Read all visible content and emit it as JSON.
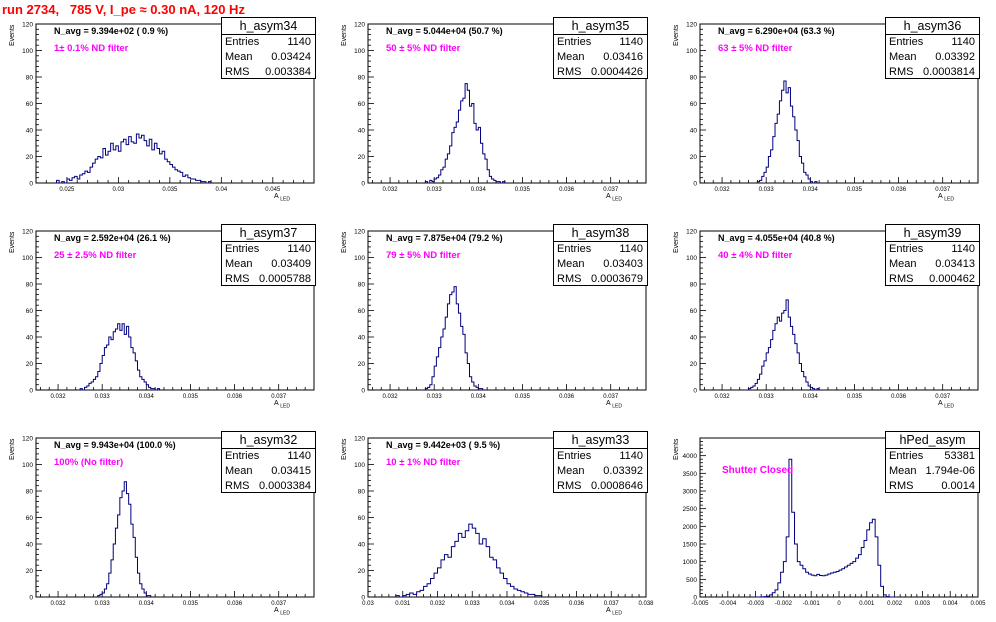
{
  "run_title": "run 2734,   785 V, I_pe ≈ 0.30 nA, 120 Hz",
  "colors": {
    "histogram": "#000080",
    "label_magenta": "#ff00ff",
    "title_red": "#ff0000"
  },
  "chart_data": [
    {
      "type": "histogram",
      "name": "h_asym34",
      "navg_text": "N_avg = 9.394e+02 ( 0.9 %)",
      "filter_text": "1± 0.1% ND filter",
      "stats": {
        "Entries": "1140",
        "Mean": "0.03424",
        "RMS": "0.003384"
      },
      "ylabel": "Events",
      "xlabel": "A",
      "xlabel_sub": "LED",
      "xlim": [
        0.022,
        0.049
      ],
      "ylim": [
        0,
        120
      ],
      "yticks": [
        0,
        20,
        40,
        60,
        80,
        100,
        120
      ],
      "xticks": [
        0.025,
        0.03,
        0.035,
        0.04,
        0.045
      ],
      "xtick_labels": [
        "0.025",
        "0.03",
        "0.035",
        "0.04",
        "0.045"
      ],
      "bin_start": 0.024,
      "bin_width": 0.00025,
      "counts": [
        2,
        0,
        1,
        0,
        3,
        2,
        4,
        5,
        3,
        6,
        7,
        9,
        8,
        12,
        15,
        18,
        20,
        19,
        26,
        21,
        24,
        30,
        25,
        28,
        24,
        31,
        33,
        29,
        35,
        31,
        30,
        37,
        34,
        36,
        32,
        28,
        33,
        25,
        30,
        26,
        22,
        24,
        18,
        16,
        14,
        12,
        10,
        9,
        8,
        5,
        6,
        4,
        3,
        3,
        2,
        2,
        1,
        1,
        0,
        1
      ]
    },
    {
      "type": "histogram",
      "name": "h_asym35",
      "navg_text": "N_avg = 5.044e+04 (50.7 %)",
      "filter_text": "50 ± 5% ND filter",
      "stats": {
        "Entries": "1140",
        "Mean": "0.03416",
        "RMS": "0.0004426"
      },
      "ylabel": "Events",
      "xlabel": "A",
      "xlabel_sub": "LED",
      "xlim": [
        0.0315,
        0.0378
      ],
      "ylim": [
        0,
        120
      ],
      "yticks": [
        0,
        20,
        40,
        60,
        80,
        100,
        120
      ],
      "xticks": [
        0.032,
        0.033,
        0.034,
        0.035,
        0.036,
        0.037
      ],
      "xtick_labels": [
        "0.032",
        "0.033",
        "0.034",
        "0.035",
        "0.036",
        "0.037"
      ],
      "bin_start": 0.0328,
      "bin_width": 5e-05,
      "counts": [
        1,
        0,
        2,
        1,
        3,
        4,
        6,
        10,
        12,
        18,
        22,
        28,
        38,
        42,
        46,
        55,
        62,
        64,
        75,
        70,
        58,
        60,
        45,
        40,
        42,
        30,
        22,
        18,
        10,
        5,
        3,
        2,
        1,
        1,
        0,
        1
      ]
    },
    {
      "type": "histogram",
      "name": "h_asym36",
      "navg_text": "N_avg = 6.290e+04 (63.3 %)",
      "filter_text": "63 ± 5% ND filter",
      "stats": {
        "Entries": "1140",
        "Mean": "0.03392",
        "RMS": "0.0003814"
      },
      "ylabel": "Events",
      "xlabel": "A",
      "xlabel_sub": "LED",
      "xlim": [
        0.0315,
        0.0378
      ],
      "ylim": [
        0,
        120
      ],
      "yticks": [
        0,
        20,
        40,
        60,
        80,
        100,
        120
      ],
      "xticks": [
        0.032,
        0.033,
        0.034,
        0.035,
        0.036,
        0.037
      ],
      "xtick_labels": [
        "0.032",
        "0.033",
        "0.034",
        "0.035",
        "0.036",
        "0.037"
      ],
      "bin_start": 0.0328,
      "bin_width": 5e-05,
      "counts": [
        1,
        2,
        5,
        8,
        12,
        20,
        25,
        35,
        45,
        52,
        62,
        70,
        77,
        68,
        72,
        58,
        50,
        40,
        32,
        20,
        15,
        8,
        6,
        3,
        1,
        0,
        1
      ]
    },
    {
      "type": "histogram",
      "name": "h_asym37",
      "navg_text": "N_avg = 2.592e+04 (26.1 %)",
      "filter_text": "25 ± 2.5% ND filter",
      "stats": {
        "Entries": "1140",
        "Mean": "0.03409",
        "RMS": "0.0005788"
      },
      "ylabel": "Events",
      "xlabel": "A",
      "xlabel_sub": "LED",
      "xlim": [
        0.0315,
        0.0378
      ],
      "ylim": [
        0,
        120
      ],
      "yticks": [
        0,
        20,
        40,
        60,
        80,
        100,
        120
      ],
      "xticks": [
        0.032,
        0.033,
        0.034,
        0.035,
        0.036,
        0.037
      ],
      "xtick_labels": [
        "0.032",
        "0.033",
        "0.034",
        "0.035",
        "0.036",
        "0.037"
      ],
      "bin_start": 0.0325,
      "bin_width": 5e-05,
      "counts": [
        1,
        0,
        2,
        3,
        5,
        6,
        8,
        10,
        14,
        20,
        26,
        32,
        34,
        40,
        38,
        44,
        46,
        50,
        45,
        50,
        42,
        48,
        40,
        32,
        28,
        22,
        15,
        10,
        8,
        6,
        4,
        2,
        1,
        1,
        0,
        1
      ]
    },
    {
      "type": "histogram",
      "name": "h_asym38",
      "navg_text": "N_avg = 7.875e+04 (79.2 %)",
      "filter_text": "79 ± 5% ND filter",
      "stats": {
        "Entries": "1140",
        "Mean": "0.03403",
        "RMS": "0.0003679"
      },
      "ylabel": "Events",
      "xlabel": "A",
      "xlabel_sub": "LED",
      "xlim": [
        0.0315,
        0.0378
      ],
      "ylim": [
        0,
        120
      ],
      "yticks": [
        0,
        20,
        40,
        60,
        80,
        100,
        120
      ],
      "xticks": [
        0.032,
        0.033,
        0.034,
        0.035,
        0.036,
        0.037
      ],
      "xtick_labels": [
        "0.032",
        "0.033",
        "0.034",
        "0.035",
        "0.036",
        "0.037"
      ],
      "bin_start": 0.0328,
      "bin_width": 5e-05,
      "counts": [
        1,
        2,
        4,
        10,
        18,
        25,
        32,
        40,
        46,
        55,
        65,
        72,
        74,
        78,
        65,
        58,
        48,
        42,
        28,
        20,
        10,
        6,
        3,
        2,
        1,
        1
      ]
    },
    {
      "type": "histogram",
      "name": "h_asym39",
      "navg_text": "N_avg = 4.055e+04 (40.8 %)",
      "filter_text": "40 ± 4% ND filter",
      "stats": {
        "Entries": "1140",
        "Mean": "0.03413",
        "RMS": "0.000462"
      },
      "ylabel": "Events",
      "xlabel": "A",
      "xlabel_sub": "LED",
      "xlim": [
        0.0315,
        0.0378
      ],
      "ylim": [
        0,
        120
      ],
      "yticks": [
        0,
        20,
        40,
        60,
        80,
        100,
        120
      ],
      "xticks": [
        0.032,
        0.033,
        0.034,
        0.035,
        0.036,
        0.037
      ],
      "xtick_labels": [
        "0.032",
        "0.033",
        "0.034",
        "0.035",
        "0.036",
        "0.037"
      ],
      "bin_start": 0.0326,
      "bin_width": 5e-05,
      "counts": [
        1,
        2,
        3,
        5,
        8,
        12,
        18,
        22,
        28,
        32,
        38,
        45,
        50,
        55,
        52,
        58,
        60,
        68,
        55,
        48,
        42,
        35,
        28,
        20,
        14,
        10,
        6,
        3,
        2,
        1,
        0,
        1
      ]
    },
    {
      "type": "histogram",
      "name": "h_asym32",
      "navg_text": "N_avg = 9.943e+04 (100.0 %)",
      "filter_text": "100% (No filter)",
      "stats": {
        "Entries": "1140",
        "Mean": "0.03415",
        "RMS": "0.0003384"
      },
      "ylabel": "Events",
      "xlabel": "A",
      "xlabel_sub": "LED",
      "xlim": [
        0.0315,
        0.0378
      ],
      "ylim": [
        0,
        120
      ],
      "yticks": [
        0,
        20,
        40,
        60,
        80,
        100,
        120
      ],
      "xticks": [
        0.032,
        0.033,
        0.034,
        0.035,
        0.036,
        0.037
      ],
      "xtick_labels": [
        "0.032",
        "0.033",
        "0.034",
        "0.035",
        "0.036",
        "0.037"
      ],
      "bin_start": 0.0329,
      "bin_width": 5e-05,
      "counts": [
        1,
        2,
        3,
        6,
        10,
        18,
        28,
        40,
        52,
        62,
        75,
        80,
        87,
        78,
        70,
        55,
        45,
        30,
        18,
        10,
        6,
        3,
        1,
        1
      ]
    },
    {
      "type": "histogram",
      "name": "h_asym33",
      "navg_text": "N_avg = 9.442e+03 ( 9.5 %)",
      "filter_text": "10 ± 1% ND filter",
      "stats": {
        "Entries": "1140",
        "Mean": "0.03392",
        "RMS": "0.0008646"
      },
      "ylabel": "Events",
      "xlabel": "A",
      "xlabel_sub": "LED",
      "xlim": [
        0.03,
        0.038
      ],
      "ylim": [
        0,
        120
      ],
      "yticks": [
        0,
        20,
        40,
        60,
        80,
        100,
        120
      ],
      "xticks": [
        0.03,
        0.031,
        0.032,
        0.033,
        0.034,
        0.035,
        0.036,
        0.037,
        0.038
      ],
      "xtick_labels": [
        "0.03",
        "0.031",
        "0.032",
        "0.033",
        "0.034",
        "0.035",
        "0.036",
        "0.037",
        "0.038"
      ],
      "bin_start": 0.0308,
      "bin_width": 0.0001,
      "counts": [
        1,
        0,
        1,
        2,
        3,
        2,
        4,
        5,
        8,
        10,
        14,
        18,
        22,
        28,
        32,
        30,
        38,
        42,
        48,
        45,
        50,
        55,
        52,
        48,
        40,
        44,
        38,
        30,
        28,
        22,
        18,
        14,
        10,
        8,
        6,
        5,
        4,
        3,
        2,
        2,
        1,
        1
      ]
    },
    {
      "type": "histogram",
      "name": "hPed_asym",
      "navg_text": "",
      "filter_text": "Shutter Closed",
      "stats": {
        "Entries": "53381",
        "Mean": "1.794e-06",
        "RMS": "0.0014"
      },
      "ylabel": "Events",
      "xlabel": "",
      "xlabel_sub": "",
      "xlim": [
        -0.005,
        0.005
      ],
      "ylim": [
        0,
        4500
      ],
      "yticks": [
        0,
        500,
        1000,
        1500,
        2000,
        2500,
        3000,
        3500,
        4000
      ],
      "xticks": [
        -0.005,
        -0.004,
        -0.003,
        -0.002,
        -0.001,
        0,
        0.001,
        0.002,
        0.003,
        0.004,
        0.005
      ],
      "xtick_labels": [
        "-0.005",
        "-0.004",
        "-0.003",
        "-0.002",
        "-0.001",
        "0",
        "0.001",
        "0.002",
        "0.003",
        "0.004",
        "0.005"
      ],
      "bin_start": -0.003,
      "bin_width": 0.0001,
      "counts": [
        0,
        0,
        5,
        10,
        20,
        60,
        120,
        200,
        400,
        700,
        1000,
        1700,
        3900,
        2400,
        1500,
        1000,
        900,
        800,
        700,
        650,
        620,
        600,
        640,
        610,
        600,
        620,
        650,
        680,
        700,
        720,
        760,
        800,
        850,
        900,
        950,
        1000,
        1100,
        1200,
        1400,
        1600,
        1900,
        2100,
        2200,
        1700,
        900,
        300,
        60,
        10,
        0,
        0,
        0
      ]
    }
  ]
}
